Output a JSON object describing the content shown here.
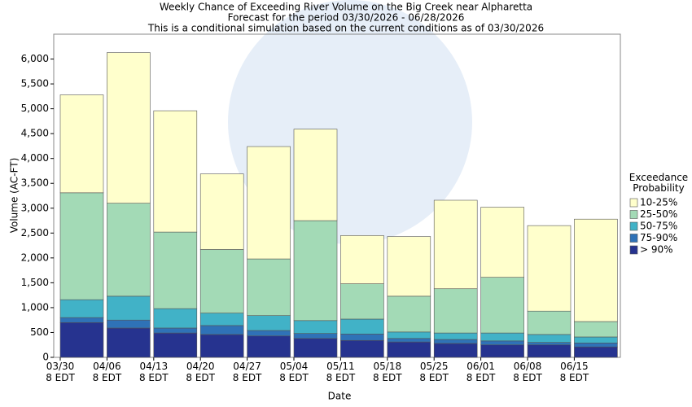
{
  "chart_data": {
    "type": "stacked_bar",
    "title": "Weekly Chance of Exceeding River Volume on the Big Creek near Alpharetta",
    "subtitle": "Forecast for the period 03/30/2026 - 06/28/2026",
    "note": "This is a conditional simulation based on the current conditions as of 03/30/2026",
    "x_label": "Date",
    "y_label": "Volume (AC-FT)",
    "legend_title": "Exceedance\nProbability",
    "legend_position": "right",
    "categories": [
      "03/30\n8 EDT",
      "04/06\n8 EDT",
      "04/13\n8 EDT",
      "04/20\n8 EDT",
      "04/27\n8 EDT",
      "05/04\n8 EDT",
      "05/11\n8 EDT",
      "05/18\n8 EDT",
      "05/25\n8 EDT",
      "06/01\n8 EDT",
      "06/08\n8 EDT",
      "06/15\n8 EDT"
    ],
    "series": [
      {
        "name": "> 90%",
        "color": "#26338f",
        "values": [
          700,
          590,
          490,
          460,
          430,
          380,
          340,
          310,
          280,
          250,
          250,
          210
        ]
      },
      {
        "name": "75-90%",
        "color": "#2f72b7",
        "values": [
          100,
          160,
          100,
          180,
          110,
          100,
          130,
          70,
          80,
          80,
          50,
          80
        ]
      },
      {
        "name": "50-75%",
        "color": "#41b2c7",
        "values": [
          360,
          480,
          390,
          250,
          300,
          260,
          300,
          130,
          130,
          160,
          160,
          120
        ]
      },
      {
        "name": "25-50%",
        "color": "#a3dab6",
        "values": [
          2150,
          1870,
          1540,
          1280,
          1140,
          2010,
          710,
          720,
          890,
          1120,
          470,
          310
        ]
      },
      {
        "name": "10-25%",
        "color": "#ffffcc",
        "values": [
          1970,
          3030,
          2440,
          1520,
          2260,
          1840,
          970,
          1200,
          1780,
          1410,
          1720,
          2060
        ]
      }
    ],
    "ylim": [
      0,
      6500
    ],
    "yticks": [
      0,
      500,
      {
        "value": 1000,
        "label": "1,000"
      },
      {
        "value": 1500,
        "label": "1,500"
      },
      {
        "value": 2000,
        "label": "2,000"
      },
      {
        "value": 2500,
        "label": "2,500"
      },
      {
        "value": 3000,
        "label": "3,000"
      },
      {
        "value": 3500,
        "label": "3,500"
      },
      {
        "value": 4000,
        "label": "4,000"
      },
      {
        "value": 4500,
        "label": "4,500"
      },
      {
        "value": 5000,
        "label": "5,000"
      },
      {
        "value": 5500,
        "label": "5,500"
      },
      {
        "value": 6000,
        "label": "6,000"
      }
    ],
    "grid": false
  }
}
